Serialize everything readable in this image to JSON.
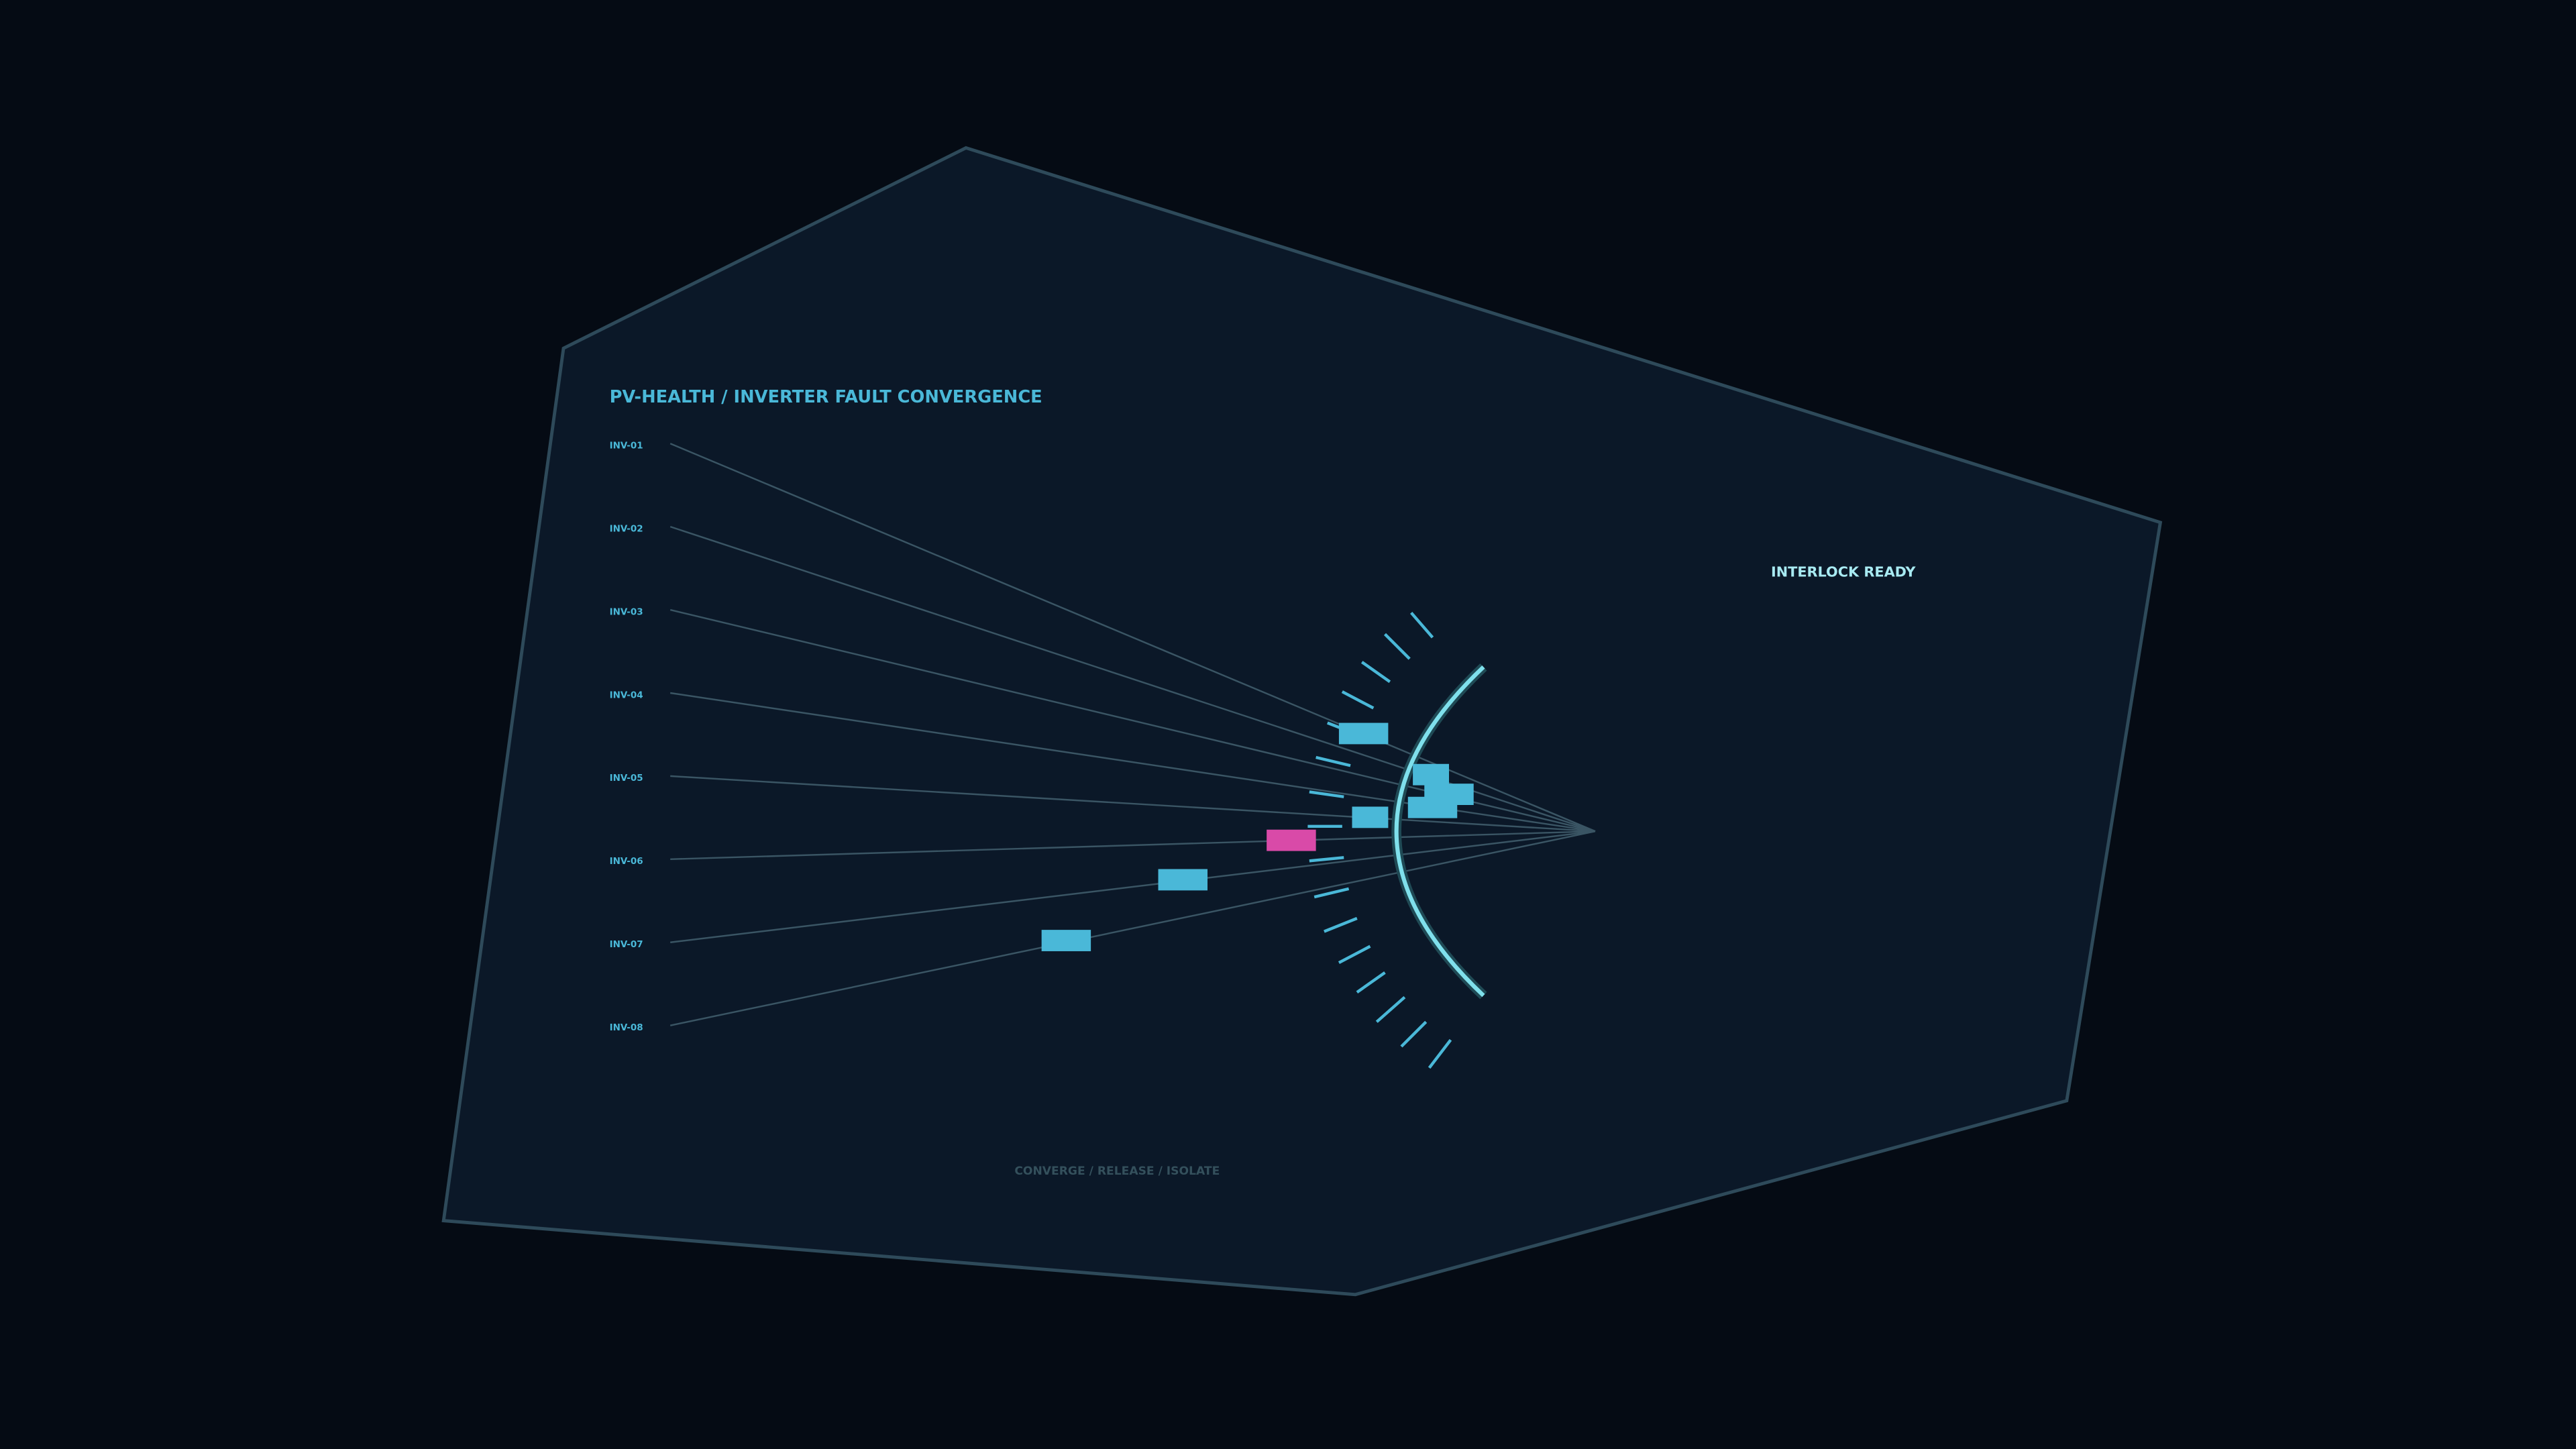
{
  "header": {
    "title": "PV-HEALTH / INVERTER FAULT CONVERGENCE",
    "status": "INTERLOCK READY"
  },
  "inverters": [
    "INV-01",
    "INV-02",
    "INV-03",
    "INV-04",
    "INV-05",
    "INV-06",
    "INV-07",
    "INV-08"
  ],
  "footer": "CONVERGE / RELEASE / ISOLATE"
}
